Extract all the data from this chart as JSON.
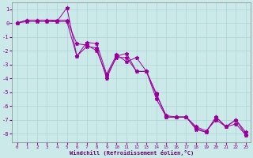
{
  "title": "",
  "xlabel": "Windchill (Refroidissement éolien,°C)",
  "ylabel": "",
  "xlim": [
    -0.5,
    23.5
  ],
  "ylim": [
    -8.6,
    1.5
  ],
  "yticks": [
    1,
    0,
    -1,
    -2,
    -3,
    -4,
    -5,
    -6,
    -7,
    -8
  ],
  "xticks": [
    0,
    1,
    2,
    3,
    4,
    5,
    6,
    7,
    8,
    9,
    10,
    11,
    12,
    13,
    14,
    15,
    16,
    17,
    18,
    19,
    20,
    21,
    22,
    23
  ],
  "bg_color": "#cce9e9",
  "grid_color": "#aad4d4",
  "line_color": "#990099",
  "series": [
    [
      0.0,
      0.1,
      0.1,
      0.1,
      0.1,
      1.1,
      -2.4,
      -1.4,
      -1.5,
      -3.7,
      -2.3,
      -2.8,
      -2.5,
      -3.5,
      -5.1,
      -6.8,
      -6.8,
      -6.8,
      -7.6,
      -7.9,
      -6.8,
      -7.5,
      -7.0,
      -7.9
    ],
    [
      0.0,
      0.2,
      0.2,
      0.2,
      0.2,
      0.2,
      -1.5,
      -1.6,
      -2.0,
      -3.8,
      -2.5,
      -2.5,
      -3.5,
      -3.5,
      -5.5,
      -6.8,
      -6.8,
      -6.8,
      -7.5,
      -7.8,
      -7.0,
      -7.5,
      -7.3,
      -8.1
    ],
    [
      0.0,
      0.2,
      0.2,
      0.2,
      0.1,
      0.1,
      -2.4,
      -1.7,
      -1.8,
      -4.0,
      -2.4,
      -2.2,
      -3.5,
      -3.5,
      -5.2,
      -6.7,
      -6.8,
      -6.8,
      -7.7,
      -7.9,
      -6.8,
      -7.5,
      -7.0,
      -8.1
    ]
  ]
}
